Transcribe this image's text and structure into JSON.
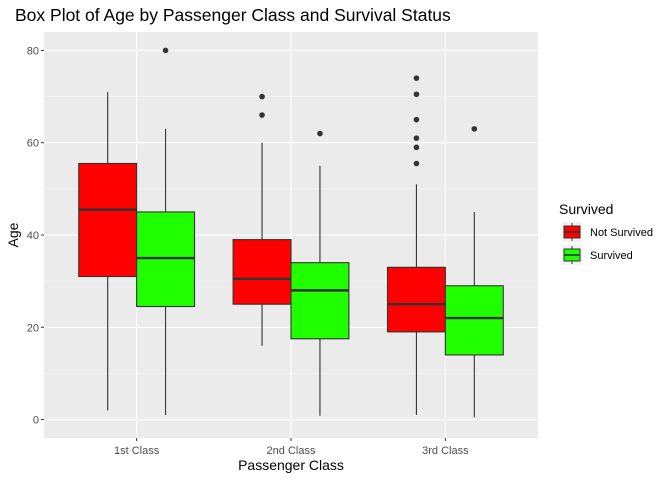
{
  "chart_data": {
    "type": "box",
    "title": "Box Plot of Age by Passenger Class and Survival Status",
    "xlabel": "Passenger Class",
    "ylabel": "Age",
    "categories": [
      "1st Class",
      "2nd Class",
      "3rd Class"
    ],
    "ylim": [
      -4,
      84
    ],
    "yticks": [
      0,
      20,
      40,
      60,
      80
    ],
    "grid": true,
    "legend": {
      "title": "Survived",
      "placement": "right"
    },
    "series": [
      {
        "name": "Not Survived",
        "color": "#FF0000",
        "boxes": [
          {
            "category": "1st Class",
            "min": 2,
            "q1": 31,
            "median": 45.5,
            "q3": 55.5,
            "max": 71,
            "outliers": []
          },
          {
            "category": "2nd Class",
            "min": 16,
            "q1": 25,
            "median": 30.5,
            "q3": 39,
            "max": 60,
            "outliers": [
              66,
              70
            ]
          },
          {
            "category": "3rd Class",
            "min": 1,
            "q1": 19,
            "median": 25,
            "q3": 33,
            "max": 51,
            "outliers": [
              55.5,
              59,
              61,
              65,
              70.5,
              74
            ]
          }
        ]
      },
      {
        "name": "Survived",
        "color": "#1FFF00",
        "boxes": [
          {
            "category": "1st Class",
            "min": 1,
            "q1": 24.5,
            "median": 35,
            "q3": 45,
            "max": 63,
            "outliers": [
              80
            ]
          },
          {
            "category": "2nd Class",
            "min": 0.8,
            "q1": 17.5,
            "median": 28,
            "q3": 34,
            "max": 55,
            "outliers": [
              62
            ]
          },
          {
            "category": "3rd Class",
            "min": 0.5,
            "q1": 14,
            "median": 22,
            "q3": 29,
            "max": 45,
            "outliers": [
              63
            ]
          }
        ]
      }
    ]
  }
}
